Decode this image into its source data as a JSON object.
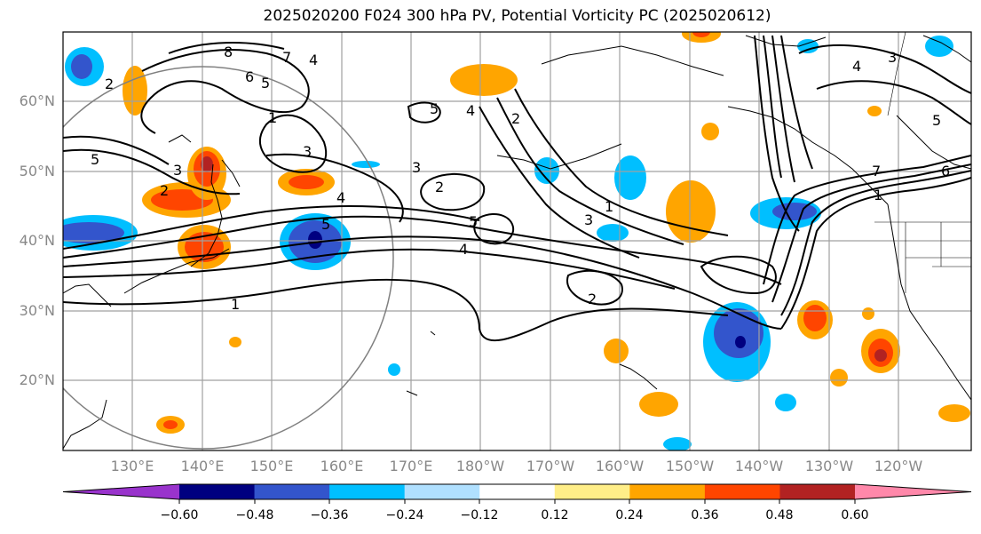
{
  "title": "2025020200 F024 300 hPa PV, Potential Vorticity PC (2025020612)",
  "map": {
    "lat_labels": [
      "60°N",
      "50°N",
      "40°N",
      "30°N",
      "20°N"
    ],
    "lon_labels": [
      "130°E",
      "140°E",
      "150°E",
      "160°E",
      "170°E",
      "180°W",
      "170°W",
      "160°W",
      "150°W",
      "140°W",
      "130°W",
      "120°W"
    ]
  },
  "contour_labels": [
    "8",
    "7",
    "6",
    "5",
    "4",
    "3",
    "2",
    "1",
    "5",
    "4",
    "3",
    "2",
    "1",
    "3",
    "2",
    "4",
    "5",
    "6",
    "7",
    "5",
    "4",
    "3",
    "2",
    "1",
    "5",
    "4",
    "3",
    "2",
    "1",
    "5"
  ],
  "colorbar": {
    "ticks": [
      "−0.60",
      "−0.48",
      "−0.36",
      "−0.24",
      "−0.12",
      "0.12",
      "0.24",
      "0.36",
      "0.48",
      "0.60"
    ],
    "colors": [
      "#9933cc",
      "#000080",
      "#3355cc",
      "#00bfff",
      "#b0e0ff",
      "#ffffff",
      "#ffee88",
      "#ffa500",
      "#ff4500",
      "#b22222",
      "#ff88aa"
    ]
  }
}
